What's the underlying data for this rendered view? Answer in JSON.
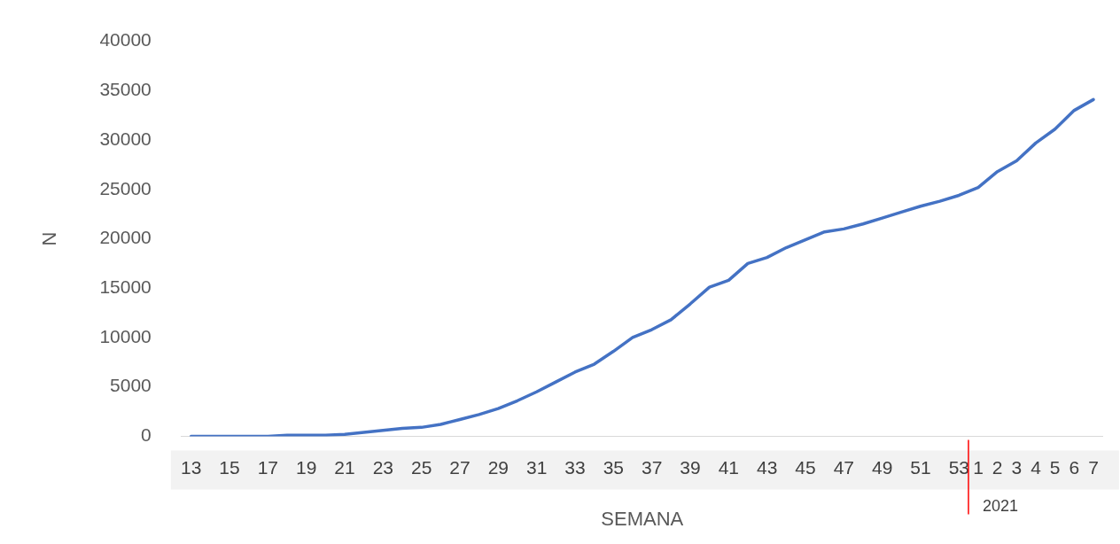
{
  "chart_data": {
    "type": "line",
    "xlabel": "SEMANA",
    "ylabel": "N",
    "categories": [
      "13",
      null,
      "15",
      null,
      "17",
      null,
      "19",
      null,
      "21",
      null,
      "23",
      null,
      "25",
      null,
      "27",
      null,
      "29",
      null,
      "31",
      null,
      "33",
      null,
      "35",
      null,
      "37",
      null,
      "39",
      null,
      "41",
      null,
      "43",
      null,
      "45",
      null,
      "47",
      null,
      "49",
      null,
      "51",
      null,
      "53",
      "1",
      "2",
      "3",
      "4",
      "5",
      "6",
      "7"
    ],
    "series": [
      {
        "color": "#4472c4",
        "values": [
          0,
          0,
          0,
          0,
          0,
          100,
          100,
          100,
          200,
          400,
          600,
          800,
          900,
          1200,
          1700,
          2200,
          2800,
          3600,
          4500,
          5500,
          6500,
          7300,
          8600,
          10000,
          10800,
          11800,
          13400,
          15100,
          15800,
          17500,
          18100,
          19100,
          19900,
          20700,
          21000,
          21500,
          22100,
          22700,
          23300,
          23800,
          24400,
          25200,
          26800,
          27900,
          29700,
          31100,
          33000,
          34100
        ]
      }
    ],
    "ylim": [
      0,
      40000
    ],
    "yticks": [
      0,
      5000,
      10000,
      15000,
      20000,
      25000,
      30000,
      35000,
      40000
    ],
    "grid": false,
    "legend": false,
    "marker": "none",
    "line_style": "solid",
    "ref_lines": [
      {
        "axis": "x",
        "value": "1",
        "label": "2021",
        "color": "#ff0000"
      }
    ]
  }
}
